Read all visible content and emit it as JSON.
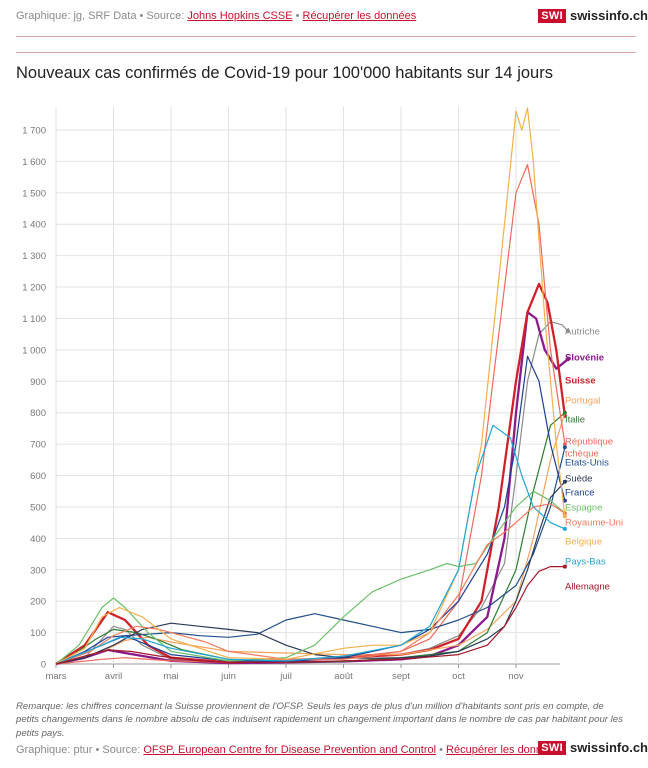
{
  "header": {
    "credits_prefix": "Graphique: jg, SRF Data • Source: ",
    "source_link": "Johns Hopkins CSSE",
    "separator": " • ",
    "download_link": "Récupérer les données"
  },
  "logo": {
    "box": "SWI",
    "text": "swissinfo.ch"
  },
  "chart_data": {
    "type": "line",
    "title": "Nouveaux cas confirmés de Covid-19 pour 100'000 habitants sur 14 jours",
    "xlabel": "",
    "ylabel": "",
    "x_ticks": [
      "mars",
      "avril",
      "mai",
      "juin",
      "juil",
      "août",
      "sept",
      "oct",
      "nov"
    ],
    "y_ticks": [
      "0",
      "100",
      "200",
      "300",
      "400",
      "500",
      "600",
      "700",
      "800",
      "900",
      "1 000",
      "1 100",
      "1 200",
      "1 300",
      "1 400",
      "1 500",
      "1 600",
      "1 700"
    ],
    "ylim": [
      0,
      1750
    ],
    "grid": true,
    "x_unit": "month index (0 = 1 mars)",
    "series": [
      {
        "name": "Autriche",
        "color": "#8c8c8c",
        "bold": false,
        "x": [
          0,
          0.5,
          0.8,
          1.0,
          1.2,
          1.5,
          2.0,
          3.0,
          4.0,
          5.0,
          6.0,
          6.5,
          7.0,
          7.4,
          7.8,
          8.0,
          8.2,
          8.4,
          8.6,
          8.8,
          8.9
        ],
        "y": [
          0,
          20,
          80,
          120,
          110,
          60,
          15,
          5,
          8,
          25,
          30,
          50,
          90,
          180,
          320,
          600,
          900,
          1050,
          1090,
          1080,
          1060
        ]
      },
      {
        "name": "Slovénie",
        "color": "#8b1a8b",
        "bold": true,
        "x": [
          0,
          0.5,
          0.9,
          1.2,
          2.0,
          3.0,
          4.0,
          5.0,
          6.0,
          6.5,
          7.0,
          7.5,
          7.8,
          8.0,
          8.2,
          8.35,
          8.5,
          8.7,
          8.9
        ],
        "y": [
          0,
          20,
          45,
          35,
          10,
          3,
          5,
          8,
          15,
          25,
          60,
          150,
          400,
          800,
          1120,
          1100,
          1000,
          940,
          970
        ]
      },
      {
        "name": "Suisse",
        "color": "#d0202a",
        "bold": true,
        "x": [
          0,
          0.5,
          0.9,
          1.2,
          1.6,
          2.0,
          3.0,
          4.0,
          5.0,
          6.0,
          6.5,
          7.0,
          7.4,
          7.7,
          8.0,
          8.2,
          8.4,
          8.55,
          8.7,
          8.85
        ],
        "y": [
          0,
          60,
          165,
          140,
          60,
          20,
          5,
          10,
          20,
          30,
          45,
          80,
          200,
          500,
          900,
          1120,
          1210,
          1150,
          1000,
          790
        ]
      },
      {
        "name": "Portugal",
        "color": "#f7a35c",
        "bold": false,
        "x": [
          0,
          0.8,
          1.2,
          1.6,
          2.0,
          3.0,
          4.0,
          5.0,
          6.0,
          7.0,
          7.5,
          8.0,
          8.3,
          8.6,
          8.85
        ],
        "y": [
          0,
          40,
          75,
          85,
          70,
          40,
          35,
          30,
          30,
          60,
          110,
          200,
          400,
          650,
          800
        ]
      },
      {
        "name": "Italie",
        "color": "#2e7d32",
        "bold": false,
        "x": [
          0,
          0.3,
          0.7,
          1.0,
          1.4,
          1.8,
          2.2,
          3.0,
          4.0,
          5.0,
          6.0,
          7.0,
          7.5,
          8.0,
          8.3,
          8.6,
          8.85
        ],
        "y": [
          0,
          30,
          80,
          110,
          100,
          75,
          45,
          15,
          5,
          8,
          20,
          40,
          100,
          300,
          550,
          760,
          800
        ]
      },
      {
        "name": "République tchèque",
        "color": "#ee6a5a",
        "bold": false,
        "x": [
          0,
          0.8,
          1.2,
          2.0,
          3.0,
          4.0,
          5.0,
          6.0,
          6.5,
          7.0,
          7.4,
          7.8,
          8.0,
          8.2,
          8.4,
          8.6,
          8.85
        ],
        "y": [
          0,
          15,
          20,
          10,
          5,
          15,
          20,
          40,
          80,
          200,
          600,
          1200,
          1500,
          1590,
          1400,
          1000,
          700
        ]
      },
      {
        "name": "Etats-Unis",
        "color": "#1f4e8c",
        "bold": false,
        "x": [
          0,
          0.8,
          1.2,
          1.6,
          2.0,
          2.5,
          3.0,
          3.5,
          4.0,
          4.5,
          5.0,
          5.5,
          6.0,
          6.5,
          7.0,
          7.5,
          8.0,
          8.3,
          8.6,
          8.85
        ],
        "y": [
          0,
          60,
          90,
          95,
          100,
          90,
          85,
          95,
          140,
          160,
          140,
          120,
          100,
          110,
          140,
          180,
          250,
          350,
          500,
          690
        ]
      },
      {
        "name": "Suède",
        "color": "#2b3a55",
        "bold": false,
        "x": [
          0,
          0.5,
          1.0,
          1.5,
          2.0,
          2.5,
          3.0,
          3.5,
          4.0,
          4.5,
          5.0,
          5.5,
          6.0,
          6.5,
          7.0,
          7.5,
          7.8,
          8.0,
          8.2,
          8.4,
          8.6,
          8.85
        ],
        "y": [
          0,
          20,
          60,
          110,
          130,
          120,
          110,
          100,
          60,
          30,
          20,
          18,
          20,
          25,
          40,
          80,
          120,
          200,
          300,
          420,
          530,
          580
        ]
      },
      {
        "name": "France",
        "color": "#1c3f94",
        "bold": false,
        "x": [
          0,
          0.5,
          0.9,
          1.2,
          1.6,
          2.0,
          3.0,
          4.0,
          5.0,
          6.0,
          6.5,
          7.0,
          7.5,
          7.8,
          8.0,
          8.2,
          8.4,
          8.6,
          8.85
        ],
        "y": [
          0,
          40,
          85,
          90,
          60,
          30,
          10,
          8,
          20,
          60,
          110,
          200,
          350,
          500,
          700,
          980,
          900,
          700,
          520
        ]
      },
      {
        "name": "Espagne",
        "color": "#6cc06a",
        "bold": false,
        "x": [
          0,
          0.4,
          0.8,
          1.0,
          1.2,
          1.6,
          2.0,
          3.0,
          4.0,
          4.5,
          5.0,
          5.5,
          6.0,
          6.5,
          6.8,
          7.0,
          7.3,
          7.6,
          8.0,
          8.3,
          8.6,
          8.85
        ],
        "y": [
          0,
          60,
          180,
          210,
          180,
          100,
          40,
          10,
          20,
          60,
          150,
          230,
          270,
          300,
          320,
          310,
          320,
          400,
          500,
          550,
          520,
          480
        ]
      },
      {
        "name": "Royaume-Uni",
        "color": "#f47a5c",
        "bold": false,
        "x": [
          0,
          0.6,
          1.0,
          1.4,
          1.8,
          2.2,
          2.6,
          3.0,
          4.0,
          5.0,
          5.5,
          6.0,
          6.5,
          7.0,
          7.5,
          7.8,
          8.0,
          8.3,
          8.6,
          8.85
        ],
        "y": [
          0,
          40,
          90,
          120,
          110,
          90,
          70,
          40,
          15,
          15,
          25,
          40,
          100,
          220,
          380,
          420,
          450,
          500,
          510,
          480
        ]
      },
      {
        "name": "Belgique",
        "color": "#f4b04a",
        "bold": false,
        "x": [
          0,
          0.5,
          0.8,
          1.1,
          1.5,
          2.0,
          3.0,
          4.0,
          5.0,
          5.5,
          6.0,
          6.5,
          7.0,
          7.4,
          7.8,
          8.0,
          8.1,
          8.2,
          8.3,
          8.5,
          8.7,
          8.85
        ],
        "y": [
          0,
          50,
          150,
          180,
          150,
          80,
          20,
          15,
          50,
          60,
          60,
          100,
          300,
          700,
          1400,
          1760,
          1700,
          1770,
          1600,
          1100,
          700,
          470
        ]
      },
      {
        "name": "Pays-Bas",
        "color": "#1fa7d6",
        "bold": false,
        "x": [
          0,
          0.8,
          1.1,
          1.5,
          2.0,
          3.0,
          4.0,
          5.0,
          6.0,
          6.5,
          7.0,
          7.3,
          7.6,
          7.9,
          8.1,
          8.3,
          8.6,
          8.85
        ],
        "y": [
          0,
          60,
          85,
          80,
          50,
          15,
          10,
          25,
          60,
          120,
          300,
          600,
          760,
          720,
          600,
          500,
          450,
          430
        ]
      },
      {
        "name": "Allemagne",
        "color": "#a3182a",
        "bold": false,
        "x": [
          0,
          0.5,
          0.9,
          1.3,
          1.8,
          2.5,
          3.0,
          4.0,
          5.0,
          6.0,
          7.0,
          7.5,
          7.8,
          8.0,
          8.2,
          8.4,
          8.6,
          8.85
        ],
        "y": [
          0,
          25,
          45,
          40,
          25,
          10,
          5,
          5,
          10,
          15,
          30,
          60,
          120,
          180,
          250,
          295,
          310,
          310
        ]
      }
    ]
  },
  "note": "Remarque: les chiffres concernant la Suisse proviennent de l'OFSP. Seuls les pays de plus d'un million d'habitants sont pris en compte, de petits changements dans le nombre absolu de cas induisent rapidement un changement important dans le nombre de cas par habitant pour les petits pays.",
  "footer": {
    "credits_prefix": "Graphique: ptur • Source: ",
    "source_link": "OFSP, European Centre for Disease Prevention and Control",
    "separator": " • ",
    "download_link": "Récupérer les données"
  }
}
